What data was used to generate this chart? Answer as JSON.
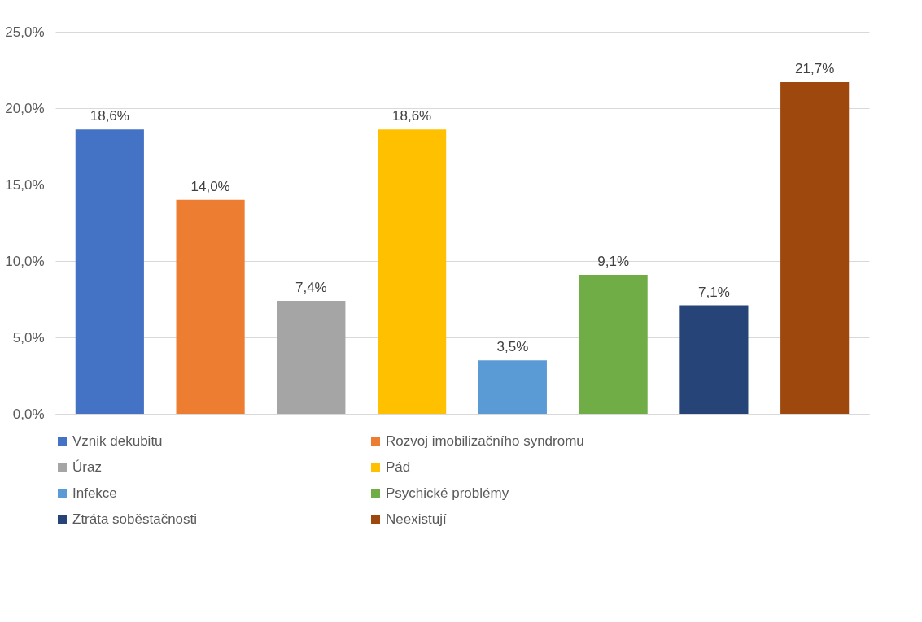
{
  "chart_data": {
    "type": "bar",
    "categories": [
      null
    ],
    "series": [
      {
        "name": "Vznik dekubitu",
        "color": "#4472c4",
        "values": [
          18.6
        ],
        "value_labels": [
          "18,6%"
        ]
      },
      {
        "name": "Rozvoj imobilizačního syndromu",
        "color": "#ed7d31",
        "values": [
          14.0
        ],
        "value_labels": [
          "14,0%"
        ]
      },
      {
        "name": "Úraz",
        "color": "#a5a5a5",
        "values": [
          7.4
        ],
        "value_labels": [
          "7,4%"
        ]
      },
      {
        "name": "Pád",
        "color": "#ffc000",
        "values": [
          18.6
        ],
        "value_labels": [
          "18,6%"
        ]
      },
      {
        "name": "Infekce",
        "color": "#5b9bd5",
        "values": [
          3.5
        ],
        "value_labels": [
          "3,5%"
        ]
      },
      {
        "name": "Psychické problémy",
        "color": "#70ad47",
        "values": [
          9.1
        ],
        "value_labels": [
          "9,1%"
        ]
      },
      {
        "name": "Ztráta soběstačnosti",
        "color": "#264478",
        "values": [
          7.1
        ],
        "value_labels": [
          "7,1%"
        ]
      },
      {
        "name": "Neexistují",
        "color": "#9e480e",
        "values": [
          21.7
        ],
        "value_labels": [
          "21,7%"
        ]
      }
    ],
    "ylim": [
      0,
      25
    ],
    "yticks": [
      {
        "value": 0,
        "label": "0,0%"
      },
      {
        "value": 5,
        "label": "5,0%"
      },
      {
        "value": 10,
        "label": "10,0%"
      },
      {
        "value": 15,
        "label": "15,0%"
      },
      {
        "value": 20,
        "label": "20,0%"
      },
      {
        "value": 25,
        "label": "25,0%"
      }
    ],
    "grid": "y",
    "legend": "bottom",
    "tick_labels": "y"
  }
}
